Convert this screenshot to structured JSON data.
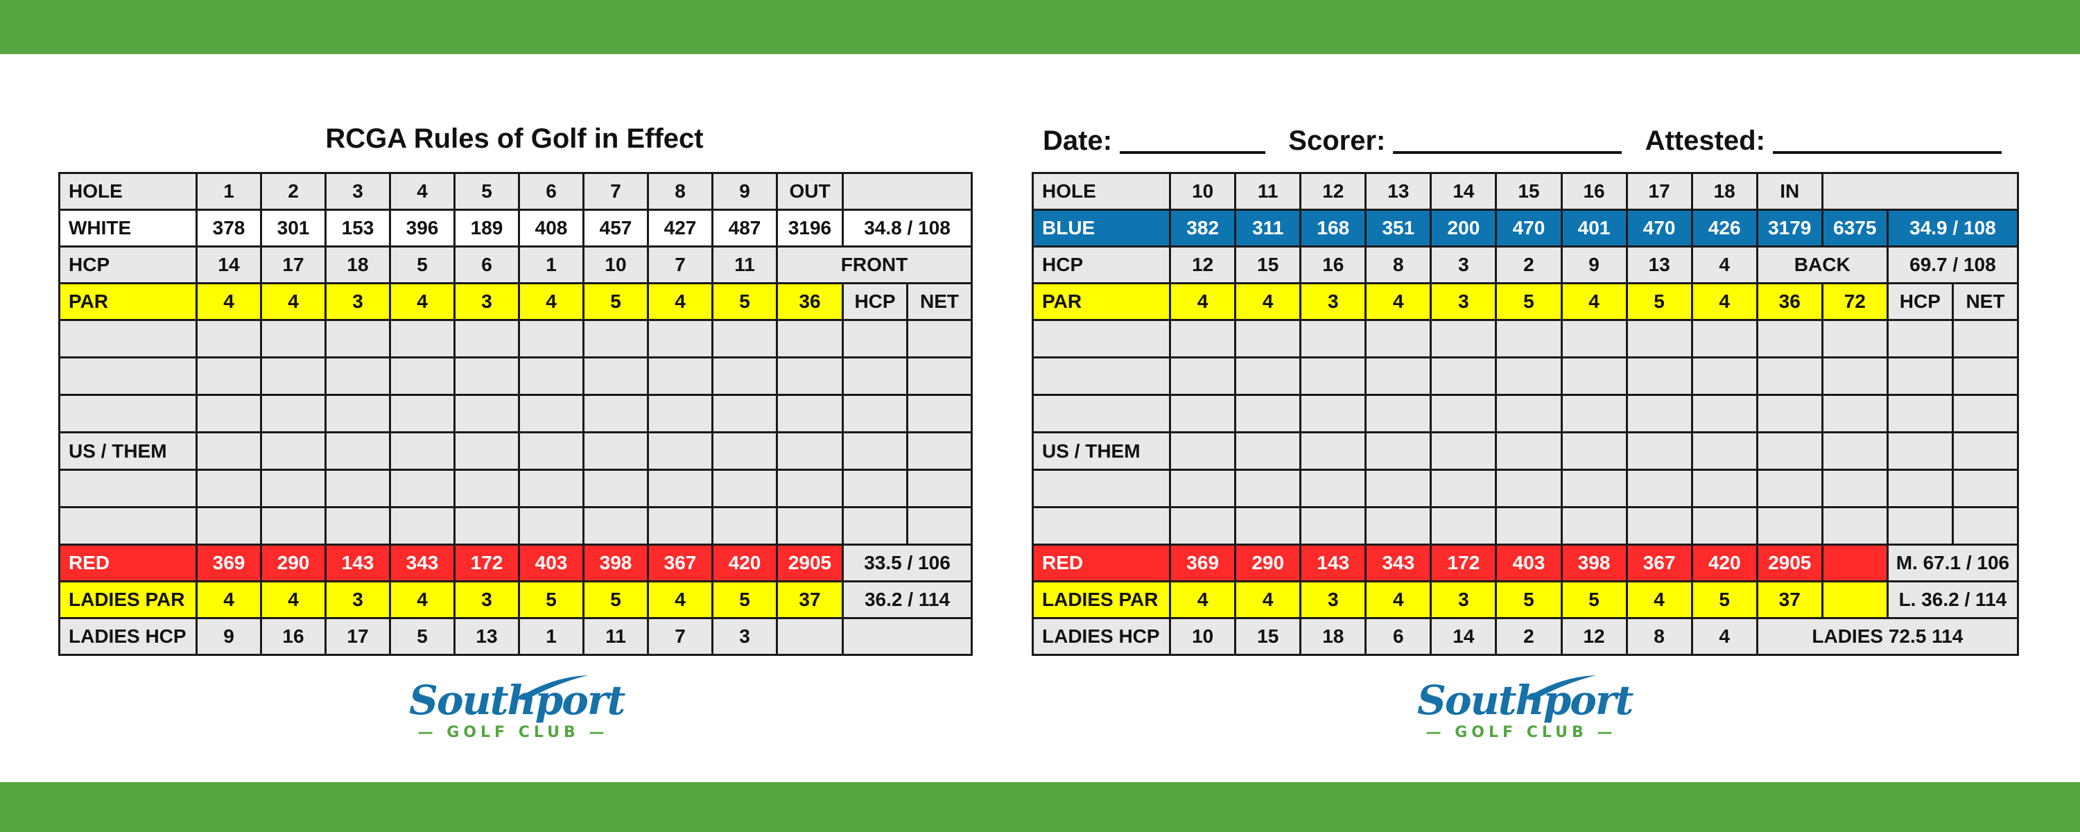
{
  "front": {
    "title": "RCGA Rules of Golf in Effect",
    "hole_label": "HOLE",
    "holes": [
      "1",
      "2",
      "3",
      "4",
      "5",
      "6",
      "7",
      "8",
      "9"
    ],
    "out_label": "OUT",
    "white": {
      "label": "WHITE",
      "values": [
        "378",
        "301",
        "153",
        "396",
        "189",
        "408",
        "457",
        "427",
        "487"
      ],
      "out": "3196",
      "rating": "34.8 / 108"
    },
    "hcp": {
      "label": "HCP",
      "values": [
        "14",
        "17",
        "18",
        "5",
        "6",
        "1",
        "10",
        "7",
        "11"
      ],
      "side": "FRONT"
    },
    "par": {
      "label": "PAR",
      "values": [
        "4",
        "4",
        "3",
        "4",
        "3",
        "4",
        "5",
        "4",
        "5"
      ],
      "out": "36",
      "hcp_label": "HCP",
      "net_label": "NET"
    },
    "us_them": "US / THEM",
    "red": {
      "label": "RED",
      "values": [
        "369",
        "290",
        "143",
        "343",
        "172",
        "403",
        "398",
        "367",
        "420"
      ],
      "out": "2905",
      "rating": "33.5 / 106"
    },
    "ladies_par": {
      "label": "LADIES PAR",
      "values": [
        "4",
        "4",
        "3",
        "4",
        "3",
        "5",
        "5",
        "4",
        "5"
      ],
      "out": "37",
      "rating": "36.2 / 114"
    },
    "ladies_hcp": {
      "label": "LADIES HCP",
      "values": [
        "9",
        "16",
        "17",
        "5",
        "13",
        "1",
        "11",
        "7",
        "3"
      ]
    }
  },
  "back": {
    "date_label": "Date:",
    "scorer_label": "Scorer:",
    "attested_label": "Attested:",
    "hole_label": "HOLE",
    "holes": [
      "10",
      "11",
      "12",
      "13",
      "14",
      "15",
      "16",
      "17",
      "18"
    ],
    "in_label": "IN",
    "blue": {
      "label": "BLUE",
      "values": [
        "382",
        "311",
        "168",
        "351",
        "200",
        "470",
        "401",
        "470",
        "426"
      ],
      "in": "3179",
      "total": "6375",
      "rating": "34.9 / 108"
    },
    "hcp": {
      "label": "HCP",
      "values": [
        "12",
        "15",
        "16",
        "8",
        "3",
        "2",
        "9",
        "13",
        "4"
      ],
      "side": "BACK",
      "rating": "69.7 / 108"
    },
    "par": {
      "label": "PAR",
      "values": [
        "4",
        "4",
        "3",
        "4",
        "3",
        "5",
        "4",
        "5",
        "4"
      ],
      "in": "36",
      "total": "72",
      "hcp_label": "HCP",
      "net_label": "NET"
    },
    "us_them": "US / THEM",
    "red": {
      "label": "RED",
      "values": [
        "369",
        "290",
        "143",
        "343",
        "172",
        "403",
        "398",
        "367",
        "420"
      ],
      "in": "2905",
      "rating": "M. 67.1 / 106"
    },
    "ladies_par": {
      "label": "LADIES PAR",
      "values": [
        "4",
        "4",
        "3",
        "4",
        "3",
        "5",
        "5",
        "4",
        "5"
      ],
      "in": "37",
      "rating": "L. 36.2 / 114"
    },
    "ladies_hcp": {
      "label": "LADIES HCP",
      "values": [
        "10",
        "15",
        "18",
        "6",
        "14",
        "2",
        "12",
        "8",
        "4"
      ],
      "rating": "LADIES 72.5 114"
    }
  },
  "logo": {
    "name": "Southport",
    "subtitle": "GOLF CLUB"
  },
  "colors": {
    "band": "#55a640",
    "yellow": "#ffff00",
    "red": "#ff2a2a",
    "blue": "#0f75b1",
    "grey": "#e8e8e8"
  }
}
